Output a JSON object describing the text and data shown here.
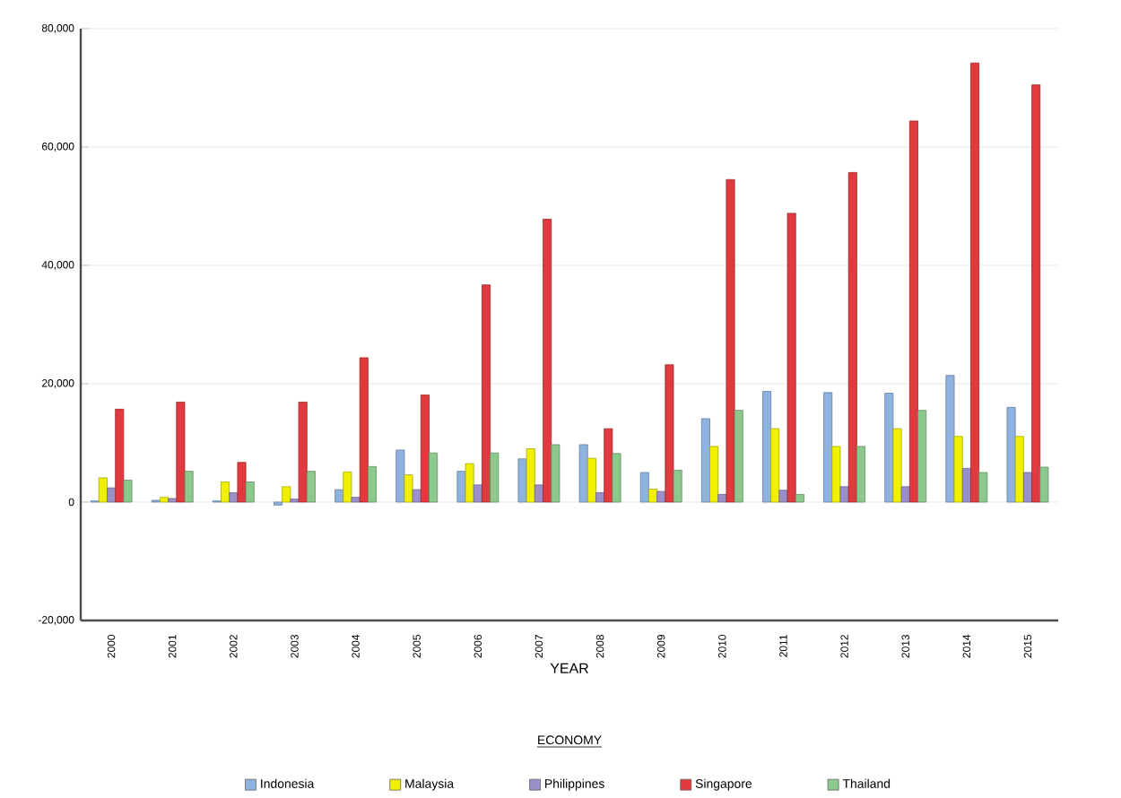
{
  "chart_data": {
    "type": "bar",
    "xlabel": "YEAR",
    "legend_title": "ECONOMY",
    "legend": "bottom",
    "grid": "y",
    "categories": [
      "2000",
      "2001",
      "2002",
      "2003",
      "2004",
      "2005",
      "2006",
      "2007",
      "2008",
      "2009",
      "2010",
      "2011",
      "2012",
      "2013",
      "2014",
      "2015"
    ],
    "ylim": [
      -20000,
      80000
    ],
    "yticks": [
      {
        "value": -20000,
        "label": "-20,000"
      },
      {
        "value": 0,
        "label": "0"
      },
      {
        "value": 20000,
        "label": "20,000"
      },
      {
        "value": 40000,
        "label": "40,000"
      },
      {
        "value": 60000,
        "label": "60,000"
      },
      {
        "value": 80000,
        "label": "80,000"
      }
    ],
    "series": [
      {
        "name": "Indonesia",
        "color": "#8fb3e0",
        "values": [
          200,
          300,
          200,
          -500,
          2100,
          8800,
          5200,
          7300,
          9700,
          5000,
          14100,
          18700,
          18500,
          18400,
          21400,
          16000
        ]
      },
      {
        "name": "Malaysia",
        "color": "#f0f000",
        "values": [
          4100,
          800,
          3400,
          2600,
          5100,
          4600,
          6500,
          9000,
          7400,
          2200,
          9400,
          12400,
          9400,
          12400,
          11100,
          11100
        ]
      },
      {
        "name": "Philippines",
        "color": "#9b8fc9",
        "values": [
          2400,
          600,
          1600,
          500,
          800,
          2100,
          2900,
          2900,
          1600,
          1800,
          1300,
          2000,
          2600,
          2600,
          5700,
          5000
        ]
      },
      {
        "name": "Singapore",
        "color": "#e03a3e",
        "values": [
          15700,
          16900,
          6700,
          16900,
          24400,
          18100,
          36700,
          47800,
          12400,
          23200,
          54500,
          48800,
          55700,
          64400,
          74200,
          70500
        ]
      },
      {
        "name": "Thailand",
        "color": "#8cc98c",
        "values": [
          3700,
          5200,
          3400,
          5200,
          6000,
          8300,
          8300,
          9700,
          8200,
          5400,
          15500,
          1300,
          9400,
          15500,
          5000,
          5900
        ]
      }
    ]
  }
}
